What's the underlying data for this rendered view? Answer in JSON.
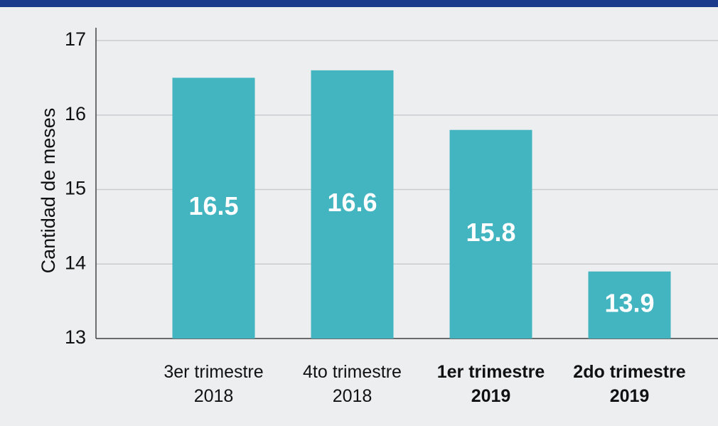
{
  "chart_data": {
    "type": "bar",
    "y_label": "Cantidad de meses",
    "categories": [
      "3er trimestre\n2018",
      "4to trimestre\n2018",
      "1er trimestre\n2019",
      "2do trimestre\n2019"
    ],
    "bold": [
      false,
      false,
      true,
      true
    ],
    "values": [
      16.5,
      16.6,
      15.8,
      13.9
    ],
    "color": "#43b5c1",
    "ylim": [
      13,
      17
    ],
    "yticks": [
      13,
      14,
      15,
      16,
      17
    ],
    "grid": true
  }
}
